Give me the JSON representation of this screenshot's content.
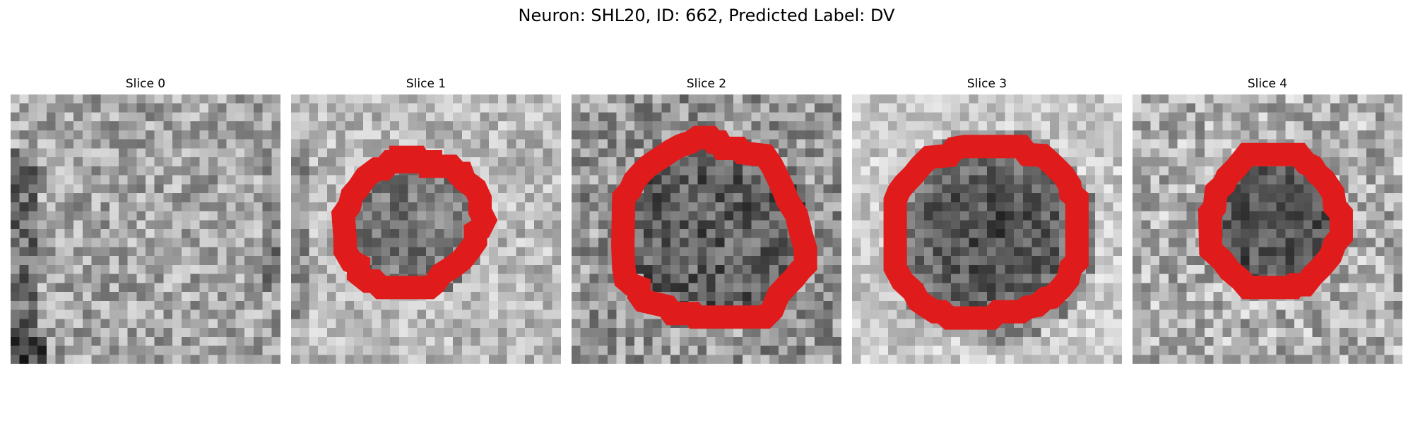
{
  "figure": {
    "title": "Neuron: SHL20, ID: 662, Predicted Label: DV",
    "roi_color": "#e01b1b",
    "image_colormap": "gray"
  },
  "slices": [
    {
      "title": "Slice 0",
      "has_roi": false
    },
    {
      "title": "Slice 1",
      "has_roi": true
    },
    {
      "title": "Slice 2",
      "has_roi": true
    },
    {
      "title": "Slice 3",
      "has_roi": true
    },
    {
      "title": "Slice 4",
      "has_roi": true
    }
  ]
}
